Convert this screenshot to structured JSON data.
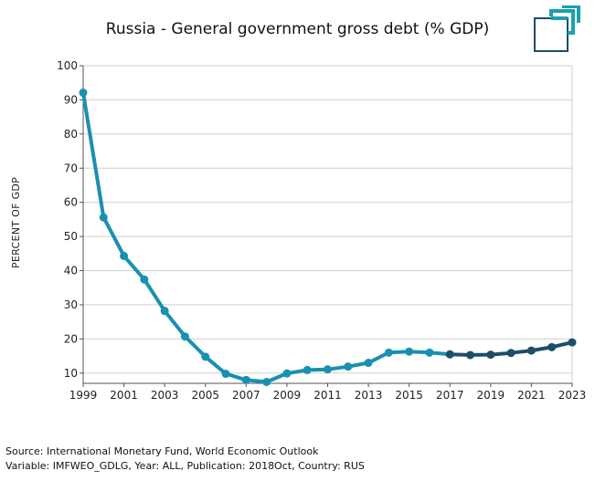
{
  "chart_data": {
    "type": "line",
    "title": "Russia - General government gross debt (% GDP)",
    "ylabel": "PERCENT OF GDP",
    "xlabel": "",
    "xlim": [
      1999,
      2023
    ],
    "ylim": [
      7,
      100
    ],
    "x_ticks": [
      "1999",
      "2001",
      "2003",
      "2005",
      "2007",
      "2009",
      "2011",
      "2013",
      "2015",
      "2017",
      "2019",
      "2021",
      "2023"
    ],
    "y_ticks": [
      "10",
      "20",
      "30",
      "40",
      "50",
      "60",
      "70",
      "80",
      "90",
      "100"
    ],
    "grid": true,
    "legend": "none",
    "series": [
      {
        "color": "#1a90b0",
        "x": [
          1999,
          2000,
          2001,
          2002,
          2003,
          2004,
          2005,
          2006,
          2007,
          2008,
          2009,
          2010,
          2011,
          2012,
          2013,
          2014,
          2015,
          2016,
          2017
        ],
        "values": [
          92.1,
          55.6,
          44.3,
          37.4,
          28.2,
          20.7,
          14.8,
          9.8,
          8.0,
          7.4,
          9.9,
          10.9,
          11.1,
          11.9,
          13.0,
          16.0,
          16.3,
          16.0,
          15.5
        ]
      },
      {
        "color": "#1e4e68",
        "x": [
          2017,
          2018,
          2019,
          2020,
          2021,
          2022,
          2023
        ],
        "values": [
          15.5,
          15.3,
          15.4,
          15.9,
          16.6,
          17.6,
          19.0
        ]
      }
    ]
  },
  "footer": {
    "source": "Source: International Monetary Fund, World Economic Outlook",
    "variable": "Variable: IMFWEO_GDLG, Year: ALL, Publication: 2018Oct, Country: RUS"
  },
  "colors": {
    "accent": "#1a90b0",
    "projection": "#1e4e68",
    "logo_teal": "#1aa0b0",
    "logo_navy": "#1e4e68"
  }
}
